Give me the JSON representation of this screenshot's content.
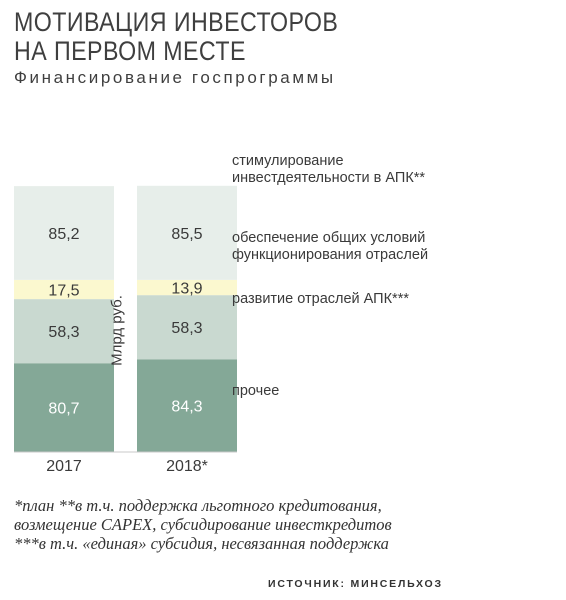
{
  "title": "МОТИВАЦИЯ ИНВЕСТОРОВ НА ПЕРВОМ МЕСТЕ",
  "subtitle": "Финансирование госпрограммы",
  "unit_label": "Млрд руб.",
  "footnote": "*план   **в т.ч. поддержка льготного кредитования, возмещение CAPEX, субсидирование инвесткредитов   ***в т.ч. «единая» субсидия, несвязанная поддержка",
  "source": "ИСТОЧНИК: МИНСЕЛЬХОЗ",
  "legend": [
    {
      "key": "stim",
      "label": "стимулирование инвестдеятельности в АПК**"
    },
    {
      "key": "obesp",
      "label": "обеспечение общих условий функционирования отраслей"
    },
    {
      "key": "razv",
      "label": "развитие отраслей АПК***"
    },
    {
      "key": "proch",
      "label": "прочее"
    }
  ],
  "chart_data": {
    "type": "bar",
    "stacked": true,
    "categories": [
      "2017",
      "2018*"
    ],
    "series": [
      {
        "name": "прочее",
        "values": [
          80.7,
          84.3
        ],
        "color": "#84a897"
      },
      {
        "name": "развитие отраслей АПК***",
        "values": [
          58.3,
          58.3
        ],
        "color": "#c9d9d0"
      },
      {
        "name": "обеспечение общих условий функционирования отраслей",
        "values": [
          17.5,
          13.9
        ],
        "color": "#fbf8cf"
      },
      {
        "name": "стимулирование инвестдеятельности в АПК**",
        "values": [
          85.2,
          85.5
        ],
        "color": "#e7eeea"
      }
    ],
    "data_labels": true,
    "grid": false,
    "legend_position": "right"
  }
}
